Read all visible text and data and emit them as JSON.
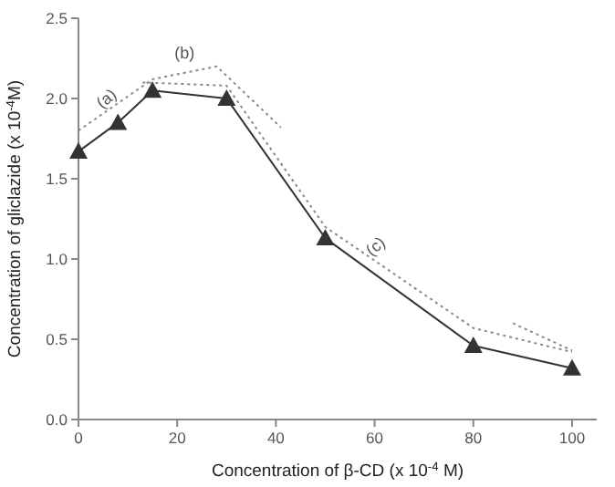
{
  "chart_data": {
    "type": "line",
    "xlabel": "Concentration of β-CD (x 10$^{-4}$ M)",
    "ylabel": "Concentration of gliclazide (x 10$^{-4}$M)",
    "xlim": [
      0,
      105
    ],
    "ylim": [
      0,
      2.5
    ],
    "xticks": [
      0,
      20,
      40,
      60,
      80,
      100
    ],
    "yticks": [
      {
        "value": 0,
        "label": "0.0"
      },
      {
        "value": 0.5,
        "label": "0.5"
      },
      {
        "value": 1,
        "label": "1.0"
      },
      {
        "value": 1.5,
        "label": "1.5"
      },
      {
        "value": 2,
        "label": "2.0"
      },
      {
        "value": 2.5,
        "label": "2.5"
      }
    ],
    "grid": false,
    "series": [
      {
        "color": "#333333",
        "x": [
          0,
          8,
          15,
          30,
          50,
          80,
          100
        ],
        "values": [
          1.67,
          1.85,
          2.05,
          2.0,
          1.13,
          0.46,
          0.32
        ],
        "marker": "triangle",
        "line_style": "solid"
      },
      {
        "color": "#888888",
        "x": [
          0,
          15,
          28,
          41
        ],
        "values": [
          1.8,
          2.12,
          2.2,
          1.82
        ],
        "marker": "none",
        "line_style": "dotted"
      },
      {
        "color": "#888888",
        "x": [
          13,
          30,
          50,
          80,
          100
        ],
        "values": [
          2.1,
          2.08,
          1.2,
          0.57,
          0.42
        ],
        "marker": "none",
        "line_style": "dotted"
      },
      {
        "color": "#888888",
        "x": [
          88,
          100
        ],
        "values": [
          0.6,
          0.43
        ],
        "marker": "none",
        "line_style": "dotted"
      }
    ],
    "annotations": [
      {
        "text": "(a)",
        "x": 7,
        "y": 1.95
      },
      {
        "text": "(b)",
        "x": 21.5,
        "y": 2.16
      },
      {
        "text": "(c)",
        "x": 60,
        "y": 0.99
      }
    ]
  }
}
